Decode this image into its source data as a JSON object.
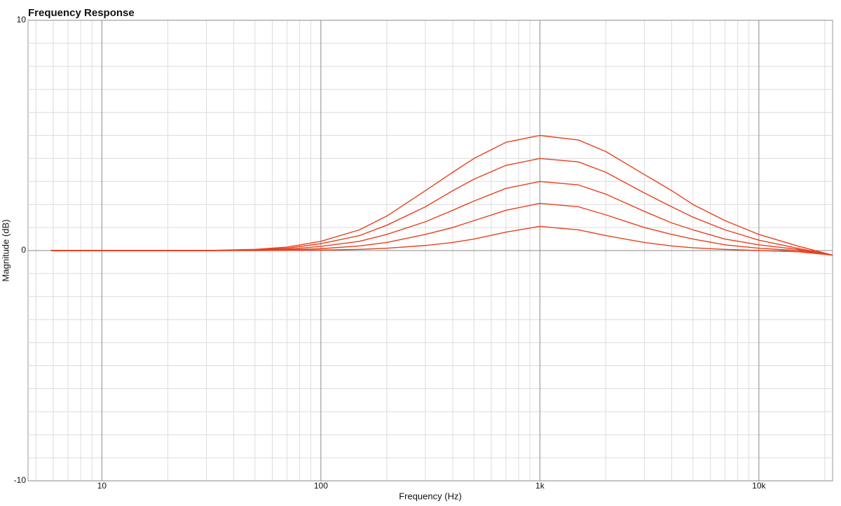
{
  "chart_data": {
    "type": "line",
    "title": "Frequency Response",
    "xlabel": "Frequency (Hz)",
    "ylabel": "Magnitude (dB)",
    "xscale": "log",
    "grid": true,
    "xlim": [
      4.6,
      21700
    ],
    "ylim": [
      -10,
      10
    ],
    "xticks": [
      10,
      100,
      {
        "value": 1000,
        "label": "1k"
      },
      {
        "value": 10000,
        "label": "10k"
      }
    ],
    "yticks": [
      10,
      0,
      -10
    ],
    "xminorticks": [
      5,
      6,
      7,
      8,
      9,
      20,
      30,
      40,
      50,
      60,
      70,
      80,
      90,
      200,
      300,
      400,
      500,
      600,
      700,
      800,
      900,
      2000,
      3000,
      4000,
      5000,
      6000,
      7000,
      8000,
      9000,
      20000
    ],
    "yminorticks": [
      -9,
      -8,
      -7,
      -6,
      -5,
      -4,
      -3,
      -2,
      -1,
      1,
      2,
      3,
      4,
      5,
      6,
      7,
      8,
      9
    ],
    "x": [
      5.85,
      10,
      20,
      30,
      50,
      70,
      100,
      150,
      200,
      300,
      400,
      500,
      700,
      1000,
      1500,
      2000,
      3000,
      4000,
      5000,
      7000,
      10000,
      15000,
      21700
    ],
    "series": [
      {
        "color": "#e8401c",
        "values": [
          0,
          0,
          0,
          0,
          0.05,
          0.15,
          0.4,
          0.9,
          1.5,
          2.6,
          3.4,
          4.0,
          4.7,
          5.0,
          4.8,
          4.3,
          3.3,
          2.6,
          2.0,
          1.3,
          0.7,
          0.2,
          -0.2
        ]
      },
      {
        "color": "#e8401c",
        "values": [
          0,
          0,
          0,
          0,
          0.03,
          0.1,
          0.3,
          0.65,
          1.1,
          1.9,
          2.6,
          3.1,
          3.7,
          4.0,
          3.85,
          3.4,
          2.5,
          1.9,
          1.45,
          0.9,
          0.45,
          0.1,
          -0.2
        ]
      },
      {
        "color": "#e8401c",
        "values": [
          0,
          0,
          0,
          0,
          0.02,
          0.06,
          0.18,
          0.4,
          0.7,
          1.25,
          1.75,
          2.15,
          2.7,
          3.0,
          2.85,
          2.45,
          1.7,
          1.2,
          0.9,
          0.5,
          0.25,
          0.05,
          -0.2
        ]
      },
      {
        "color": "#e8401c",
        "values": [
          0,
          0,
          0,
          0,
          0.01,
          0.03,
          0.08,
          0.2,
          0.35,
          0.7,
          1.0,
          1.3,
          1.75,
          2.05,
          1.9,
          1.55,
          1.0,
          0.7,
          0.5,
          0.25,
          0.1,
          0,
          -0.2
        ]
      },
      {
        "color": "#e8401c",
        "values": [
          0,
          0,
          0,
          0,
          0,
          0.01,
          0.02,
          0.05,
          0.1,
          0.22,
          0.35,
          0.5,
          0.8,
          1.05,
          0.9,
          0.65,
          0.35,
          0.2,
          0.12,
          0.05,
          0,
          -0.05,
          -0.2
        ]
      }
    ]
  }
}
